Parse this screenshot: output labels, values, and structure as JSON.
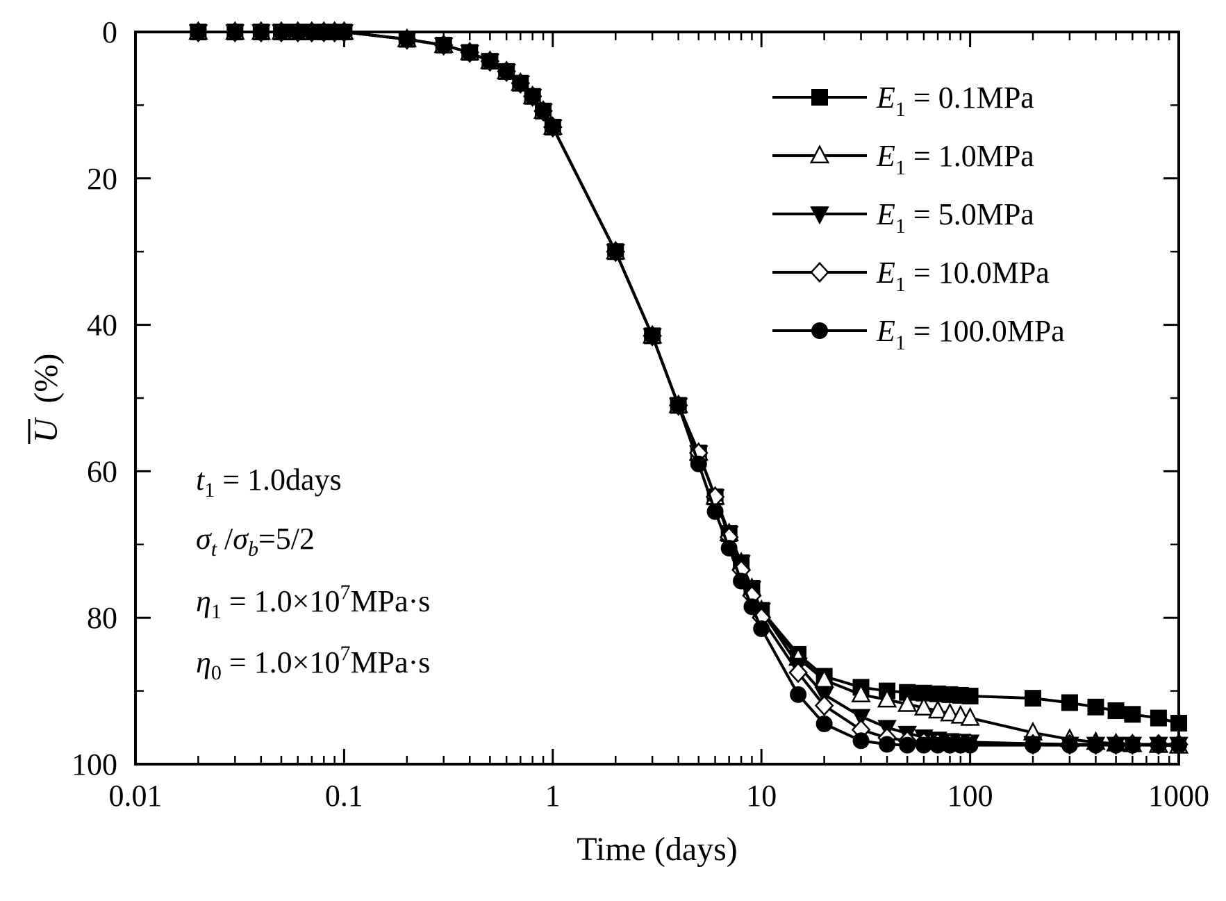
{
  "chart_data": {
    "type": "line",
    "x_scale": "log",
    "xlabel": "Time (days)",
    "ylabel": {
      "symbol": "U",
      "unit": "(%)"
    },
    "xlim": [
      0.01,
      1000
    ],
    "ylim": [
      0,
      100
    ],
    "y_inverted": true,
    "x_ticks": [
      0.01,
      0.1,
      1,
      10,
      100,
      1000
    ],
    "x_tick_labels": [
      "0.01",
      "0.1",
      "1",
      "10",
      "100",
      "1000"
    ],
    "y_ticks": [
      0,
      20,
      40,
      60,
      80,
      100
    ],
    "y_tick_labels": [
      "0",
      "20",
      "40",
      "60",
      "80",
      "100"
    ],
    "grid": false,
    "legend_position": "top-right",
    "legend": [
      {
        "prefix": "E",
        "sub": "1",
        "text": " = 0.1MPa",
        "marker": "square-filled"
      },
      {
        "prefix": "E",
        "sub": "1",
        "text": " = 1.0MPa",
        "marker": "triangle-up-open"
      },
      {
        "prefix": "E",
        "sub": "1",
        "text": " = 5.0MPa",
        "marker": "triangle-down-filled"
      },
      {
        "prefix": "E",
        "sub": "1",
        "text": " = 10.0MPa",
        "marker": "diamond-open"
      },
      {
        "prefix": "E",
        "sub": "1",
        "text": " = 100.0MPa",
        "marker": "circle-filled"
      }
    ],
    "annotations": {
      "t1": {
        "sym": "t",
        "sub": "1",
        "text": " = 1.0days"
      },
      "sigma": {
        "sym1": "σ",
        "sub1": "t",
        "mid": " /",
        "sym2": "σ",
        "sub2": "b",
        "text": "=5/2"
      },
      "eta1": {
        "sym": "η",
        "sub": "1",
        "text1": " = 1.0×10",
        "sup": "7",
        "text2": "MPa·s"
      },
      "eta0": {
        "sym": "η",
        "sub": "0",
        "text1": " = 1.0×10",
        "sup": "7",
        "text2": "MPa·s"
      }
    },
    "series": [
      {
        "name": "E1 = 0.1MPa",
        "marker": "square-filled",
        "x": [
          0.02,
          0.03,
          0.04,
          0.05,
          0.06,
          0.07,
          0.08,
          0.09,
          0.1,
          0.2,
          0.3,
          0.4,
          0.5,
          0.6,
          0.7,
          0.8,
          0.9,
          1,
          2,
          3,
          4,
          5,
          6,
          7,
          8,
          9,
          10,
          15,
          20,
          30,
          40,
          50,
          60,
          70,
          80,
          90,
          100,
          200,
          300,
          400,
          500,
          600,
          800,
          1000
        ],
        "y": [
          0,
          0,
          0,
          0,
          0,
          0,
          0,
          0,
          0,
          1,
          1.8,
          2.8,
          4,
          5.4,
          7,
          8.8,
          10.8,
          13,
          30,
          41.5,
          51,
          57.5,
          63.5,
          68.5,
          72.5,
          76,
          79,
          85,
          88,
          89.5,
          90,
          90.2,
          90.3,
          90.4,
          90.5,
          90.6,
          90.7,
          91,
          91.6,
          92.2,
          92.7,
          93.2,
          93.7,
          94.4
        ]
      },
      {
        "name": "E1 = 1.0MPa",
        "marker": "triangle-up-open",
        "x": [
          0.02,
          0.03,
          0.04,
          0.05,
          0.06,
          0.07,
          0.08,
          0.09,
          0.1,
          0.2,
          0.3,
          0.4,
          0.5,
          0.6,
          0.7,
          0.8,
          0.9,
          1,
          2,
          3,
          4,
          5,
          6,
          7,
          8,
          9,
          10,
          15,
          20,
          30,
          40,
          50,
          60,
          70,
          80,
          90,
          100,
          200,
          300,
          400,
          500,
          600,
          800,
          1000
        ],
        "y": [
          0,
          0,
          0,
          0,
          0,
          0,
          0,
          0,
          0,
          1,
          1.8,
          2.8,
          4,
          5.4,
          7,
          8.8,
          10.8,
          13,
          30,
          41.5,
          51,
          57.5,
          63.5,
          68.5,
          72.5,
          76,
          79,
          85.5,
          88.5,
          90.5,
          91.2,
          91.8,
          92.3,
          92.7,
          93.1,
          93.4,
          93.7,
          95.7,
          96.6,
          97,
          97.2,
          97.3,
          97.4,
          97.5
        ]
      },
      {
        "name": "E1 = 5.0MPa",
        "marker": "triangle-down-filled",
        "x": [
          0.02,
          0.03,
          0.04,
          0.05,
          0.06,
          0.07,
          0.08,
          0.09,
          0.1,
          0.2,
          0.3,
          0.4,
          0.5,
          0.6,
          0.7,
          0.8,
          0.9,
          1,
          2,
          3,
          4,
          5,
          6,
          7,
          8,
          9,
          10,
          15,
          20,
          30,
          40,
          50,
          60,
          70,
          80,
          90,
          100,
          200,
          300,
          400,
          500,
          600,
          800,
          1000
        ],
        "y": [
          0,
          0,
          0,
          0,
          0,
          0,
          0,
          0,
          0,
          1,
          1.8,
          2.8,
          4,
          5.4,
          7,
          8.8,
          10.8,
          13,
          30,
          41.5,
          51,
          57.5,
          63.5,
          68.5,
          72.5,
          76,
          79,
          86.5,
          90.5,
          93.5,
          95,
          95.8,
          96.3,
          96.6,
          96.8,
          96.9,
          97,
          97.2,
          97.3,
          97.3,
          97.3,
          97.3,
          97.3,
          97.3
        ]
      },
      {
        "name": "E1 = 10.0MPa",
        "marker": "diamond-open",
        "x": [
          0.02,
          0.03,
          0.04,
          0.05,
          0.06,
          0.07,
          0.08,
          0.09,
          0.1,
          0.2,
          0.3,
          0.4,
          0.5,
          0.6,
          0.7,
          0.8,
          0.9,
          1,
          2,
          3,
          4,
          5,
          6,
          7,
          8,
          9,
          10,
          15,
          20,
          30,
          40,
          50,
          60,
          70,
          80,
          90,
          100,
          200,
          300,
          400,
          500,
          600,
          800,
          1000
        ],
        "y": [
          0,
          0,
          0,
          0,
          0,
          0,
          0,
          0,
          0,
          1,
          1.8,
          2.8,
          4,
          5.4,
          7,
          8.8,
          10.8,
          13,
          30,
          41.5,
          51,
          57.5,
          63.5,
          69,
          73.5,
          77,
          80,
          87.5,
          92,
          95.3,
          96.4,
          96.8,
          97,
          97.1,
          97.2,
          97.2,
          97.2,
          97.3,
          97.3,
          97.3,
          97.3,
          97.3,
          97.3,
          97.3
        ]
      },
      {
        "name": "E1 = 100.0MPa",
        "marker": "circle-filled",
        "x": [
          0.02,
          0.03,
          0.04,
          0.05,
          0.06,
          0.07,
          0.08,
          0.09,
          0.1,
          0.2,
          0.3,
          0.4,
          0.5,
          0.6,
          0.7,
          0.8,
          0.9,
          1,
          2,
          3,
          4,
          5,
          6,
          7,
          8,
          9,
          10,
          15,
          20,
          30,
          40,
          50,
          60,
          70,
          80,
          90,
          100,
          200,
          300,
          400,
          500,
          600,
          800,
          1000
        ],
        "y": [
          0,
          0,
          0,
          0,
          0,
          0,
          0,
          0,
          0,
          1,
          1.8,
          2.8,
          4,
          5.4,
          7,
          8.8,
          10.8,
          13,
          30,
          41.5,
          51,
          59,
          65.5,
          70.5,
          75,
          78.5,
          81.5,
          90.5,
          94.5,
          96.8,
          97.3,
          97.4,
          97.4,
          97.4,
          97.4,
          97.4,
          97.4,
          97.4,
          97.4,
          97.4,
          97.4,
          97.4,
          97.4,
          97.4
        ]
      }
    ]
  }
}
